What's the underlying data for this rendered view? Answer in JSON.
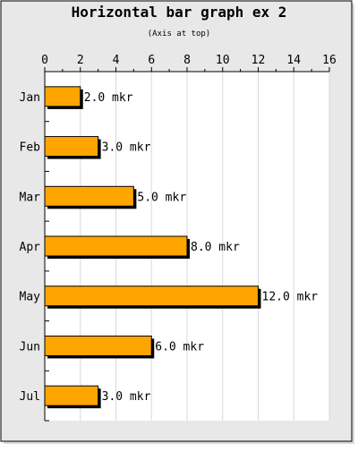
{
  "chart_data": {
    "type": "bar",
    "orientation": "horizontal",
    "title": "Horizontal bar graph ex 2",
    "subtitle": "(Axis at top)",
    "categories": [
      "Jan",
      "Feb",
      "Mar",
      "Apr",
      "May",
      "Jun",
      "Jul"
    ],
    "values": [
      2,
      3,
      5,
      8,
      12,
      6,
      3
    ],
    "data_labels": [
      "2.0 mkr",
      "3.0 mkr",
      "5.0 mkr",
      "8.0 mkr",
      "12.0 mkr",
      "6.0 mkr",
      "3.0 mkr"
    ],
    "xlim": [
      0,
      16
    ],
    "x_ticks": [
      "0",
      "2",
      "4",
      "6",
      "8",
      "10",
      "12",
      "14",
      "16"
    ],
    "x_axis_position": "top",
    "grid": true,
    "legend": "none",
    "colors": {
      "bar": "#ffa500",
      "shadow": "#000000",
      "plot_background": "#ffffff",
      "panel_background": "#e8e8e8",
      "grid": "#d9d9d9"
    }
  }
}
